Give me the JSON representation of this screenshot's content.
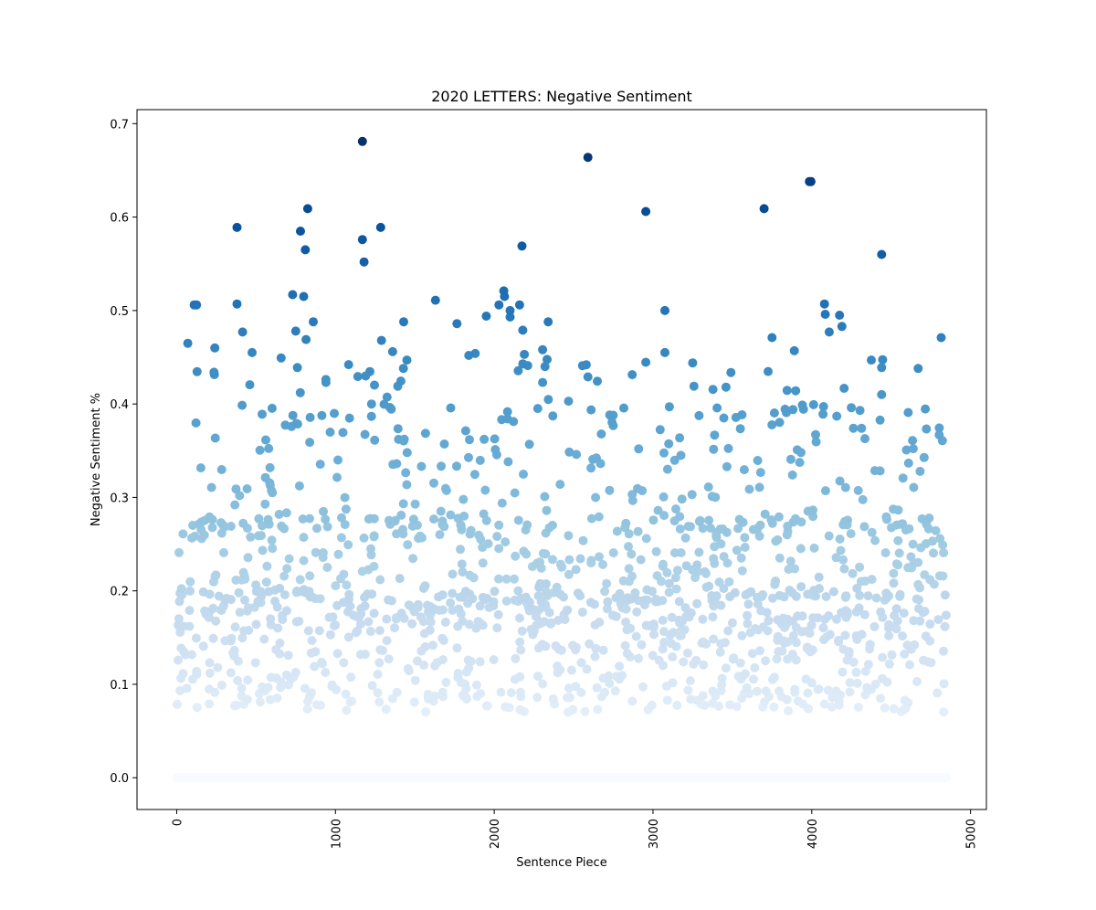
{
  "chart_data": {
    "type": "scatter",
    "title": "2020 LETTERS: Negative Sentiment",
    "xlabel": "Sentence Piece",
    "ylabel": "Negative Sentiment %",
    "xlim": [
      -250,
      5100
    ],
    "ylim": [
      -0.034,
      0.715
    ],
    "xticks": [
      0,
      1000,
      2000,
      3000,
      4000,
      5000
    ],
    "yticks": [
      0.0,
      0.1,
      0.2,
      0.3,
      0.4,
      0.5,
      0.6,
      0.7
    ],
    "grid": false,
    "legend": "none",
    "colormap": "Blues",
    "color_scale": [
      0.0,
      0.68
    ],
    "colors": {
      "low": "#f7fbff",
      "mid": "#6baed6",
      "high": "#08306b"
    },
    "zero_band": {
      "x_range": [
        0,
        4850
      ],
      "y": 0.0
    },
    "n_background_points": 1300,
    "notable_points": [
      [
        1170,
        0.681
      ],
      [
        2590,
        0.664
      ],
      [
        3985,
        0.638
      ],
      [
        3995,
        0.638
      ],
      [
        825,
        0.609
      ],
      [
        3700,
        0.609
      ],
      [
        2955,
        0.606
      ],
      [
        380,
        0.589
      ],
      [
        1285,
        0.589
      ],
      [
        780,
        0.585
      ],
      [
        1170,
        0.576
      ],
      [
        810,
        0.565
      ],
      [
        2175,
        0.569
      ],
      [
        4440,
        0.56
      ],
      [
        1180,
        0.552
      ],
      [
        2060,
        0.521
      ],
      [
        2065,
        0.515
      ],
      [
        730,
        0.517
      ],
      [
        800,
        0.515
      ],
      [
        110,
        0.506
      ],
      [
        125,
        0.506
      ],
      [
        380,
        0.507
      ],
      [
        4080,
        0.507
      ],
      [
        2160,
        0.506
      ],
      [
        2030,
        0.506
      ],
      [
        3075,
        0.5
      ],
      [
        2100,
        0.5
      ],
      [
        1630,
        0.511
      ],
      [
        4085,
        0.496
      ],
      [
        4175,
        0.495
      ],
      [
        1950,
        0.494
      ],
      [
        2100,
        0.493
      ],
      [
        2340,
        0.488
      ],
      [
        860,
        0.488
      ],
      [
        1430,
        0.488
      ],
      [
        1765,
        0.486
      ],
      [
        4190,
        0.483
      ],
      [
        2180,
        0.479
      ],
      [
        750,
        0.478
      ],
      [
        415,
        0.477
      ],
      [
        4110,
        0.477
      ],
      [
        815,
        0.469
      ],
      [
        1290,
        0.468
      ],
      [
        70,
        0.465
      ],
      [
        2180,
        0.443
      ],
      [
        2190,
        0.453
      ],
      [
        3750,
        0.471
      ],
      [
        4815,
        0.471
      ],
      [
        4375,
        0.447
      ],
      [
        1450,
        0.447
      ],
      [
        2305,
        0.458
      ],
      [
        3890,
        0.457
      ],
      [
        3075,
        0.455
      ],
      [
        1360,
        0.456
      ],
      [
        475,
        0.455
      ],
      [
        1880,
        0.454
      ],
      [
        1840,
        0.452
      ],
      [
        240,
        0.46
      ],
      [
        3250,
        0.444
      ],
      [
        4440,
        0.439
      ],
      [
        4670,
        0.438
      ],
      [
        2580,
        0.442
      ],
      [
        2320,
        0.44
      ],
      [
        235,
        0.434
      ],
      [
        1190,
        0.43
      ],
      [
        2590,
        0.429
      ],
      [
        760,
        0.439
      ],
      [
        940,
        0.423
      ],
      [
        2305,
        0.423
      ],
      [
        3460,
        0.418
      ],
      [
        4440,
        0.41
      ]
    ]
  }
}
